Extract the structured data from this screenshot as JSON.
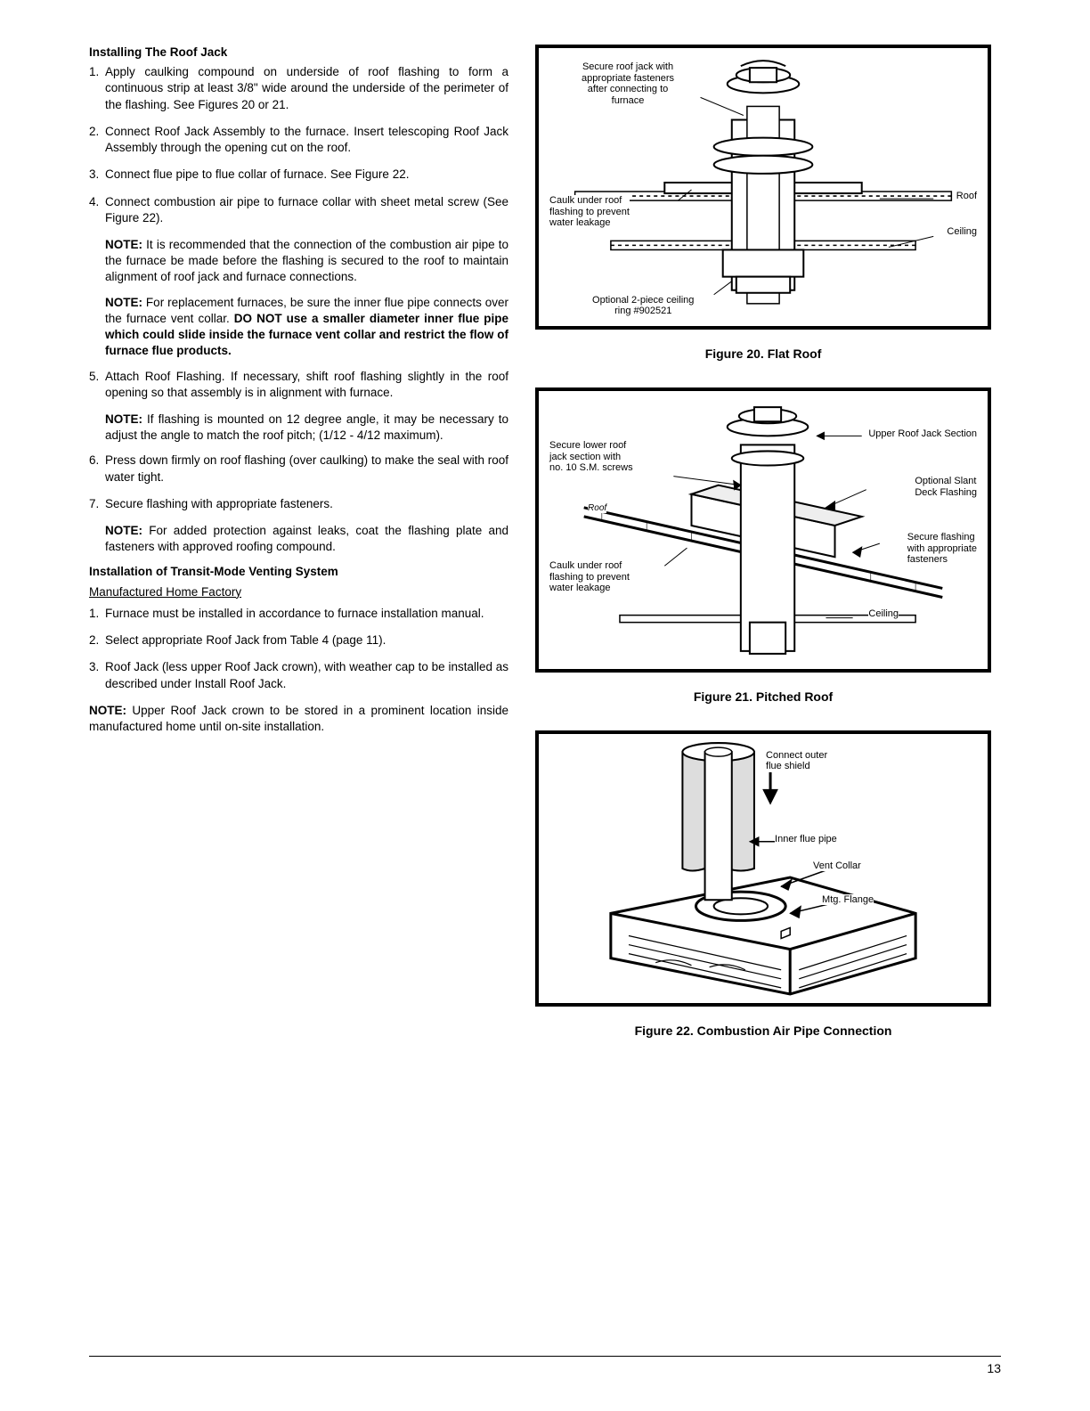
{
  "left": {
    "heading1": "Installing The Roof Jack",
    "items1": [
      "Apply caulking compound on underside of roof flashing to form a continuous strip at least 3/8\" wide around the underside of the perimeter of the flashing. See Figures 20 or 21.",
      "Connect Roof Jack Assembly to the furnace. Insert telescoping Roof Jack Assembly through the opening cut on the roof.",
      "Connect flue pipe to flue collar of furnace. See Figure 22.",
      "Connect combustion air pipe to furnace collar with sheet metal screw (See Figure 22)."
    ],
    "note1_lead": "NOTE:",
    "note1_body": " It is recommended that the connection of the combustion air pipe to the furnace be made before the flashing is secured to the roof to maintain alignment of roof jack and furnace connections.",
    "note2_lead": "NOTE:",
    "note2_pre": " For replacement furnaces, be sure the inner flue pipe connects over the furnace vent collar. ",
    "note2_bold": "DO NOT use a smaller diameter inner flue pipe which could slide inside the furnace vent collar and restrict the flow of furnace flue products.",
    "items2": [
      "Attach Roof Flashing. If necessary, shift roof flashing slightly in the roof opening so that assembly is in alignment with furnace."
    ],
    "note3_lead": "NOTE:",
    "note3_body": " If flashing is mounted on 12 degree angle, it may be necessary to adjust the angle to match the roof pitch; (1/12 - 4/12 maximum).",
    "items3": [
      "Press down firmly on roof flashing (over caulking) to make the seal with roof water tight.",
      "Secure flashing with appropriate fasteners."
    ],
    "note4_lead": "NOTE:",
    "note4_body": " For added protection against leaks, coat the flashing plate and fasteners with approved roofing compound.",
    "heading2": "Installation of Transit-Mode Venting System",
    "sub2": "Manufactured Home Factory",
    "items4": [
      "Furnace must be installed in accordance to furnace installation manual.",
      "Select appropriate Roof Jack from Table 4 (page 11).",
      "Roof Jack (less upper Roof Jack crown), with weather cap to be installed as described under Install Roof Jack."
    ],
    "note5_lead": "NOTE:",
    "note5_body": " Upper Roof Jack crown to be stored in a prominent location inside manufactured home until on-site installation."
  },
  "figures": {
    "f20": {
      "caption": "Figure 20. Flat Roof",
      "label_secure": "Secure roof jack with\nappropriate fasteners\nafter connecting to\nfurnace",
      "label_caulk": "Caulk under roof\nflashing to prevent\nwater leakage",
      "label_roof": "Roof",
      "label_ceiling": "Ceiling",
      "label_ring": "Optional 2-piece ceiling\nring #902521"
    },
    "f21": {
      "caption": "Figure 21. Pitched Roof",
      "label_upper": "Upper Roof Jack Section",
      "label_secure_lower": "Secure lower roof\njack section with\nno. 10 S.M. screws",
      "label_optional": "Optional Slant\nDeck Flashing",
      "label_roof": "Roof",
      "label_caulk": "Caulk under roof\nflashing to prevent\nwater leakage",
      "label_secure_flash": "Secure flashing\nwith appropriate\nfasteners",
      "label_ceiling": "Ceiling"
    },
    "f22": {
      "caption": "Figure 22. Combustion Air Pipe Connection",
      "label_outer": "Connect outer\nflue shield",
      "label_inner": "Inner flue pipe",
      "label_collar": "Vent Collar",
      "label_flange": "Mtg. Flange"
    }
  },
  "page_number": "13"
}
